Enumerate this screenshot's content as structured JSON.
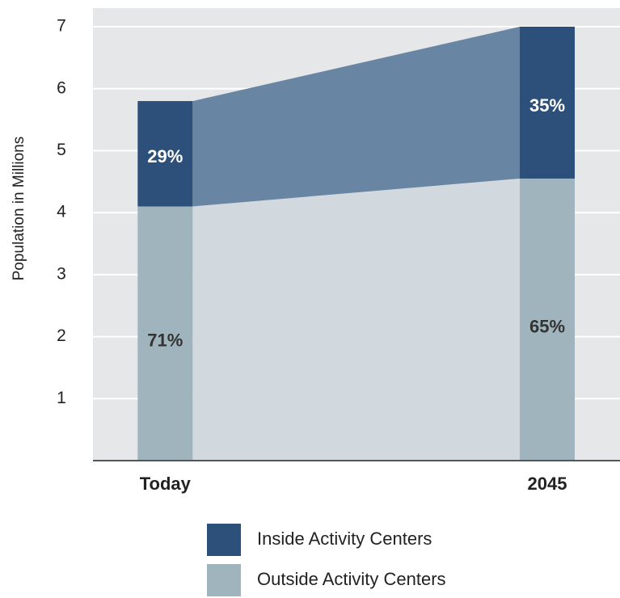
{
  "chart_data": {
    "type": "stacked_bar_area",
    "y_label": "Population in Millions",
    "categories": [
      "Today",
      "2045"
    ],
    "series": [
      {
        "name": "Outside Activity Centers",
        "color": "#a0b4be",
        "area_color": "#d1d9de",
        "values": [
          4.1,
          4.55
        ],
        "share_labels": [
          "71%",
          "65%"
        ]
      },
      {
        "name": "Inside Activity Centers",
        "color": "#2c5079",
        "area_color": "#6886a3",
        "values": [
          1.7,
          2.45
        ],
        "share_labels": [
          "29%",
          "35%"
        ]
      }
    ],
    "ylim": [
      0,
      7.3
    ],
    "yticks": [
      1,
      2,
      3,
      4,
      5,
      6,
      7
    ],
    "grid": true
  }
}
